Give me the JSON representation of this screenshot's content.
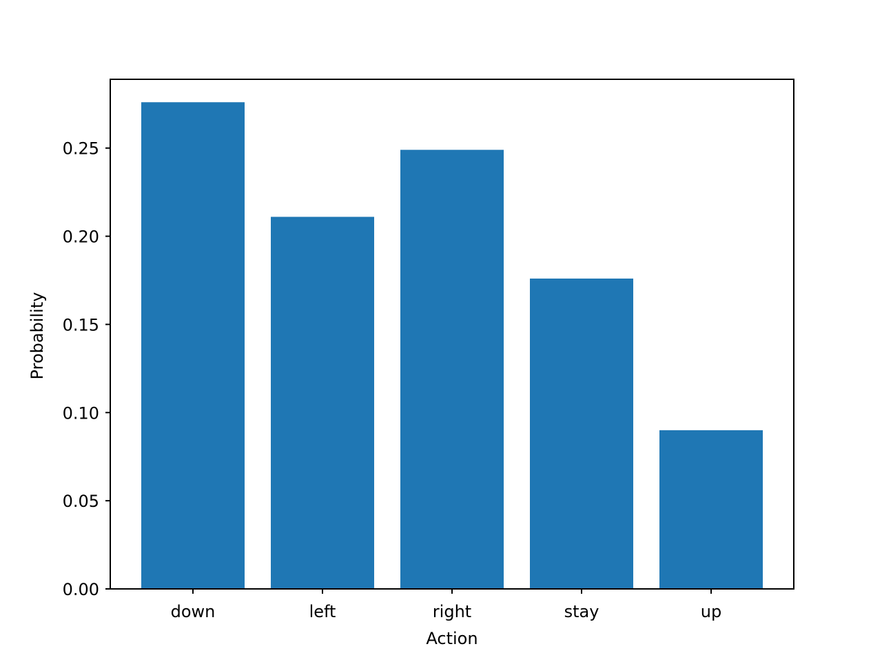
{
  "chart_data": {
    "type": "bar",
    "title": "",
    "xlabel": "Action",
    "ylabel": "Probability",
    "categories": [
      "down",
      "left",
      "right",
      "stay",
      "up"
    ],
    "values": [
      0.276,
      0.211,
      0.249,
      0.176,
      0.09
    ],
    "ylim": [
      0,
      0.289
    ],
    "yticks": [
      "0.00",
      "0.05",
      "0.10",
      "0.15",
      "0.20",
      "0.25"
    ],
    "grid": false,
    "legend": "none",
    "colors": {
      "bar": "#1f77b4",
      "axis": "#000000",
      "background": "#ffffff"
    }
  }
}
